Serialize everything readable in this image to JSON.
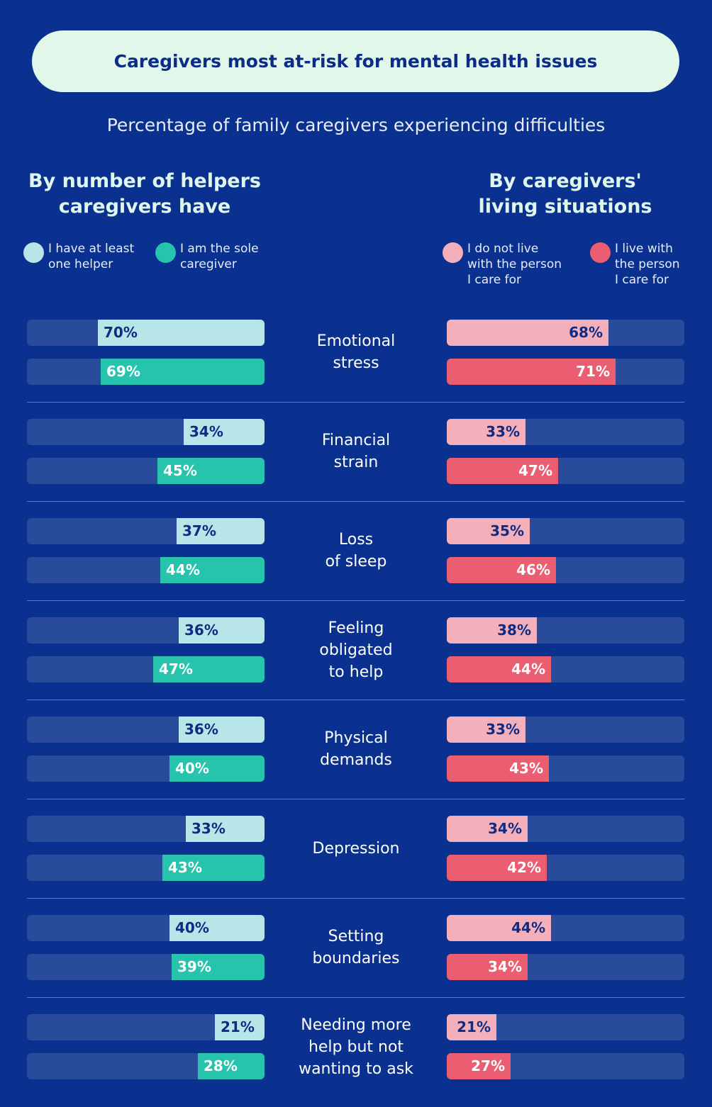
{
  "title": "Caregivers most at-risk for mental health issues",
  "subtitle": "Percentage of family caregivers experiencing difficulties",
  "left_header": [
    "By number of helpers",
    "caregivers have"
  ],
  "right_header": [
    "By caregivers'",
    "living situations"
  ],
  "legend": {
    "helper": [
      "I have at least",
      "one helper"
    ],
    "sole": [
      "I am the sole",
      "caregiver"
    ],
    "notlive": [
      "I do not live",
      "with the person",
      "I care for"
    ],
    "live": [
      "I live with",
      "the person",
      "I care for"
    ]
  },
  "colors": {
    "background": "#0a318f",
    "track": "#294b9b",
    "helper": "#b8e5e8",
    "sole": "#26c3ad",
    "notlive": "#f4b0ba",
    "live": "#eb5e72",
    "dark_label": "#0d2c86",
    "white_label": "#ffffff"
  },
  "chart_data": [
    {
      "type": "bar",
      "title": "By number of helpers caregivers have",
      "categories": [
        "Emotional stress",
        "Financial strain",
        "Loss of sleep",
        "Feeling obligated to help",
        "Physical demands",
        "Depression",
        "Setting boundaries",
        "Needing more help but not wanting to ask"
      ],
      "series": [
        {
          "name": "I have at least one helper",
          "values": [
            70,
            34,
            37,
            36,
            36,
            33,
            40,
            21
          ]
        },
        {
          "name": "I am the sole caregiver",
          "values": [
            69,
            45,
            44,
            47,
            40,
            43,
            39,
            28
          ]
        }
      ],
      "ylim": [
        0,
        100
      ],
      "unit": "%"
    },
    {
      "type": "bar",
      "title": "By caregivers' living situations",
      "categories": [
        "Emotional stress",
        "Financial strain",
        "Loss of sleep",
        "Feeling obligated to help",
        "Physical demands",
        "Depression",
        "Setting boundaries",
        "Needing more help but not wanting to ask"
      ],
      "series": [
        {
          "name": "I do not live with the person I care for",
          "values": [
            68,
            33,
            35,
            38,
            33,
            34,
            44,
            21
          ]
        },
        {
          "name": "I live with the person I care for",
          "values": [
            71,
            47,
            46,
            44,
            43,
            42,
            34,
            27
          ]
        }
      ],
      "ylim": [
        0,
        100
      ],
      "unit": "%"
    }
  ],
  "categories": [
    {
      "lines": [
        "Emotional",
        "stress"
      ]
    },
    {
      "lines": [
        "Financial",
        "strain"
      ]
    },
    {
      "lines": [
        "Loss",
        "of sleep"
      ]
    },
    {
      "lines": [
        "Feeling",
        "obligated",
        "to help"
      ]
    },
    {
      "lines": [
        "Physical",
        "demands"
      ]
    },
    {
      "lines": [
        "Depression"
      ]
    },
    {
      "lines": [
        "Setting",
        "boundaries"
      ]
    },
    {
      "lines": [
        "Needing more",
        "help but not",
        "wanting to ask"
      ]
    }
  ]
}
